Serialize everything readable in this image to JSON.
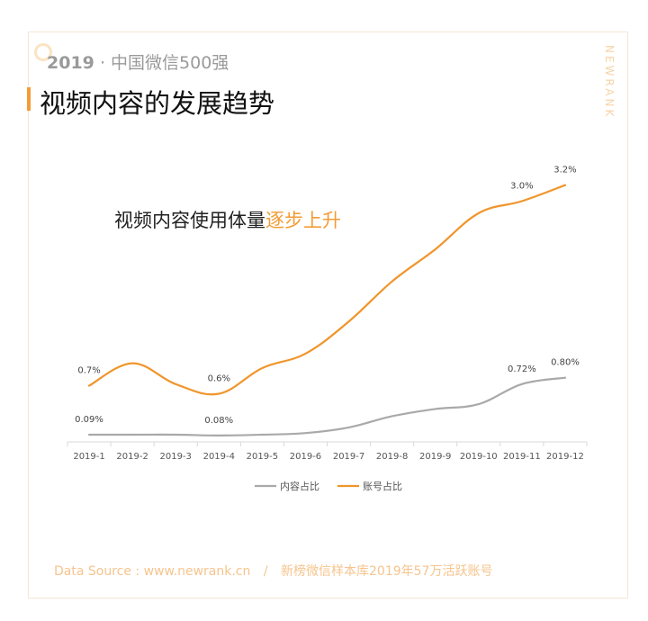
{
  "header": {
    "year": "2019",
    "dot": "·",
    "tag": "中国微信500强",
    "title": "视频内容的发展趋势",
    "brand": "NEWRANK"
  },
  "subtitle": {
    "plain": "视频内容使用体量",
    "highlight": "逐步上升"
  },
  "colors": {
    "accent": "#f39c36",
    "gray_series": "#a9a9a9",
    "orange_series": "#f0952b"
  },
  "chart_data": {
    "type": "line",
    "categories": [
      "2019-1",
      "2019-2",
      "2019-3",
      "2019-4",
      "2019-5",
      "2019-6",
      "2019-7",
      "2019-8",
      "2019-9",
      "2019-10",
      "2019-11",
      "2019-12"
    ],
    "series": [
      {
        "name": "内容占比",
        "color": "#a9a9a9",
        "values": [
          0.09,
          0.09,
          0.09,
          0.08,
          0.09,
          0.11,
          0.18,
          0.32,
          0.41,
          0.47,
          0.72,
          0.8
        ],
        "labels": [
          {
            "index": 0,
            "text": "0.09%"
          },
          {
            "index": 3,
            "text": "0.08%"
          },
          {
            "index": 10,
            "text": "0.72%"
          },
          {
            "index": 11,
            "text": "0.80%"
          }
        ]
      },
      {
        "name": "账号占比",
        "color": "#f0952b",
        "values": [
          0.7,
          0.98,
          0.72,
          0.6,
          0.92,
          1.1,
          1.5,
          2.0,
          2.4,
          2.85,
          3.0,
          3.2
        ],
        "labels": [
          {
            "index": 0,
            "text": "0.7%"
          },
          {
            "index": 3,
            "text": "0.6%"
          },
          {
            "index": 10,
            "text": "3.0%"
          },
          {
            "index": 11,
            "text": "3.2%"
          }
        ]
      }
    ],
    "ylim": [
      0,
      3.6
    ],
    "legend_position": "bottom-center",
    "grid": false
  },
  "footer": {
    "source": "Data Source : www.newrank.cn",
    "divider": "/",
    "note": "新榜微信样本库2019年57万活跃账号"
  }
}
